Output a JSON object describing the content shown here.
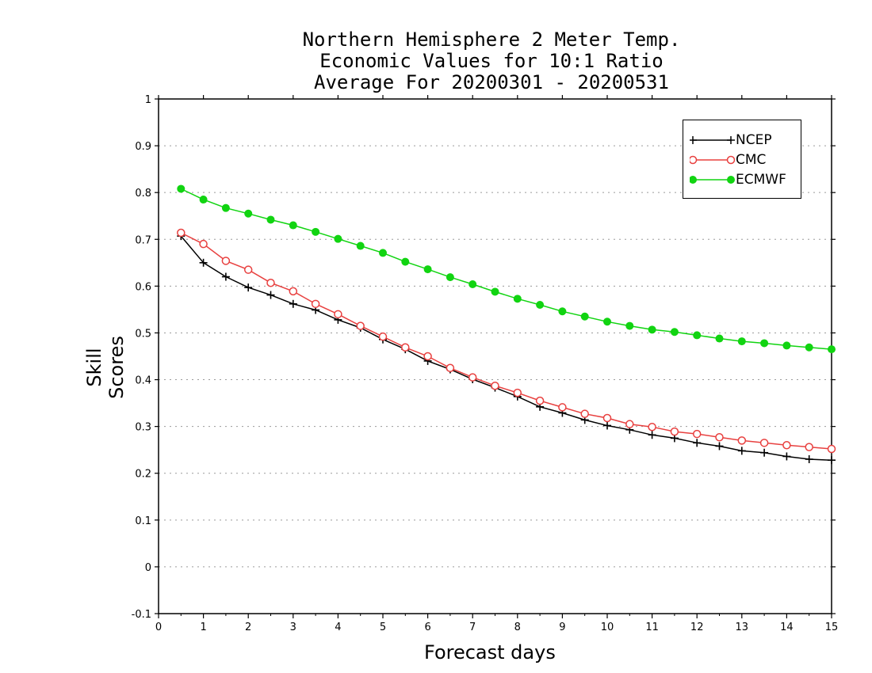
{
  "chart_data": {
    "type": "line",
    "title": [
      "Northern Hemisphere 2 Meter Temp.",
      "Economic Values for 10:1 Ratio",
      "Average For 20200301 - 20200531"
    ],
    "xlabel": "Forecast days",
    "ylabel": "Skill Scores",
    "xlim": [
      0,
      15
    ],
    "ylim": [
      -0.1,
      1
    ],
    "xticks": [
      "0",
      "1",
      "2",
      "3",
      "4",
      "5",
      "6",
      "7",
      "8",
      "9",
      "10",
      "11",
      "12",
      "13",
      "14",
      "15"
    ],
    "yticks": [
      "-0.1",
      "0",
      "0.1",
      "0.2",
      "0.3",
      "0.4",
      "0.5",
      "0.6",
      "0.7",
      "0.8",
      "0.9",
      "1"
    ],
    "grid": true,
    "legend_position": "top-right",
    "x": [
      0.5,
      1,
      1.5,
      2,
      2.5,
      3,
      3.5,
      4,
      4.5,
      5,
      5.5,
      6,
      6.5,
      7,
      7.5,
      8,
      8.5,
      9,
      9.5,
      10,
      10.5,
      11,
      11.5,
      12,
      12.5,
      13,
      13.5,
      14,
      14.5,
      15
    ],
    "series": [
      {
        "name": "NCEP",
        "color": "#000000",
        "marker": "plus",
        "values": [
          0.707,
          0.65,
          0.62,
          0.597,
          0.581,
          0.562,
          0.549,
          0.528,
          0.511,
          0.486,
          0.465,
          0.44,
          0.422,
          0.401,
          0.383,
          0.364,
          0.342,
          0.329,
          0.314,
          0.302,
          0.293,
          0.282,
          0.275,
          0.265,
          0.258,
          0.248,
          0.244,
          0.236,
          0.23,
          0.228
        ]
      },
      {
        "name": "CMC",
        "color": "#e8403f",
        "marker": "open-circle",
        "values": [
          0.714,
          0.69,
          0.654,
          0.635,
          0.607,
          0.589,
          0.562,
          0.54,
          0.515,
          0.492,
          0.469,
          0.45,
          0.425,
          0.405,
          0.387,
          0.372,
          0.355,
          0.341,
          0.327,
          0.318,
          0.305,
          0.299,
          0.289,
          0.284,
          0.277,
          0.27,
          0.265,
          0.26,
          0.256,
          0.252
        ]
      },
      {
        "name": "ECMWF",
        "color": "#11d411",
        "marker": "filled-circle",
        "values": [
          0.808,
          0.785,
          0.767,
          0.755,
          0.742,
          0.73,
          0.716,
          0.701,
          0.686,
          0.671,
          0.652,
          0.636,
          0.619,
          0.604,
          0.588,
          0.573,
          0.56,
          0.546,
          0.535,
          0.524,
          0.515,
          0.507,
          0.502,
          0.495,
          0.488,
          0.482,
          0.478,
          0.473,
          0.469,
          0.465
        ]
      }
    ]
  }
}
